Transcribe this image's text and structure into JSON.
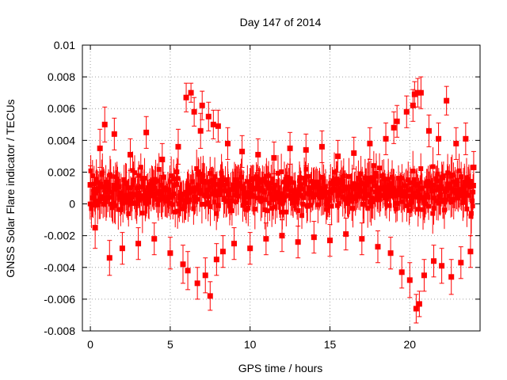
{
  "chart_data": {
    "type": "scatter",
    "title": "Day 147 of 2014",
    "xlabel": "GPS time / hours",
    "ylabel": "GNSS Solar Flare indicator / TECUs",
    "xlim": [
      -0.5,
      24.4
    ],
    "ylim": [
      -0.008,
      0.01
    ],
    "xticks": [
      0,
      5,
      10,
      15,
      20
    ],
    "yticks": [
      -0.008,
      -0.006,
      -0.004,
      -0.002,
      0,
      0.002,
      0.004,
      0.006,
      0.008,
      0.01
    ],
    "xtick_labels": [
      "0",
      "5",
      "10",
      "15",
      "20"
    ],
    "ytick_labels": [
      "-0.008",
      "-0.006",
      "-0.004",
      "-0.002",
      "0",
      "0.002",
      "0.004",
      "0.006",
      "0.008",
      "0.01"
    ],
    "grid": true,
    "marker": "square",
    "error_bars": true,
    "color": "#ff0000",
    "series": [
      {
        "name": "solar flare indicator",
        "x": [
          0.0,
          0.3,
          0.6,
          0.9,
          1.2,
          1.5,
          2.0,
          2.5,
          3.0,
          3.5,
          4.0,
          4.5,
          5.0,
          5.5,
          5.8,
          6.0,
          6.1,
          6.3,
          6.5,
          6.7,
          6.9,
          7.0,
          7.2,
          7.4,
          7.5,
          7.7,
          7.9,
          8.0,
          8.3,
          8.6,
          9.0,
          9.5,
          10.0,
          10.5,
          11.0,
          11.5,
          12.0,
          12.5,
          13.0,
          13.5,
          14.0,
          14.5,
          15.0,
          15.5,
          16.0,
          16.5,
          17.0,
          17.5,
          18.0,
          18.5,
          18.8,
          19.0,
          19.2,
          19.5,
          19.8,
          20.0,
          20.2,
          20.3,
          20.4,
          20.5,
          20.6,
          20.7,
          20.9,
          21.2,
          21.5,
          21.8,
          22.0,
          22.3,
          22.6,
          22.9,
          23.2,
          23.5,
          23.8,
          24.0
        ],
        "y": [
          0.0012,
          -0.0015,
          0.0035,
          0.005,
          -0.0034,
          0.0044,
          -0.0028,
          0.0031,
          -0.0025,
          0.0045,
          -0.0022,
          0.0028,
          -0.0031,
          0.0036,
          -0.0038,
          0.0067,
          -0.0042,
          0.007,
          0.0058,
          -0.005,
          0.0046,
          0.0062,
          -0.0045,
          0.0055,
          -0.0058,
          0.005,
          -0.0035,
          0.0049,
          -0.003,
          0.0038,
          -0.0025,
          0.0033,
          -0.0028,
          0.0031,
          -0.0022,
          0.0029,
          -0.002,
          0.0035,
          -0.0024,
          0.0034,
          -0.0021,
          0.0036,
          -0.0023,
          0.003,
          -0.0019,
          0.0032,
          -0.0022,
          0.0038,
          -0.0027,
          0.0041,
          -0.0031,
          0.0048,
          0.0052,
          -0.0043,
          0.0058,
          -0.0048,
          0.0062,
          0.0069,
          -0.0066,
          0.007,
          -0.0063,
          0.007,
          -0.0045,
          0.0046,
          -0.0036,
          0.0041,
          -0.0039,
          0.0065,
          -0.0046,
          0.0038,
          -0.0037,
          0.0041,
          -0.003,
          0.0023
        ],
        "err": [
          0.0012,
          0.0013,
          0.0012,
          0.0011,
          0.0011,
          0.001,
          0.001,
          0.001,
          0.001,
          0.001,
          0.001,
          0.001,
          0.001,
          0.0011,
          0.0012,
          0.0009,
          0.0012,
          0.0006,
          0.0009,
          0.001,
          0.0011,
          0.0009,
          0.0011,
          0.0009,
          0.0009,
          0.0009,
          0.001,
          0.001,
          0.001,
          0.001,
          0.001,
          0.001,
          0.001,
          0.001,
          0.001,
          0.001,
          0.001,
          0.001,
          0.001,
          0.001,
          0.001,
          0.001,
          0.001,
          0.001,
          0.001,
          0.001,
          0.001,
          0.001,
          0.001,
          0.001,
          0.001,
          0.001,
          0.001,
          0.001,
          0.001,
          0.0011,
          0.001,
          0.0008,
          0.0009,
          0.0009,
          0.0008,
          0.001,
          0.001,
          0.001,
          0.001,
          0.001,
          0.0011,
          0.0009,
          0.0011,
          0.001,
          0.001,
          0.001,
          0.001,
          0.001
        ]
      }
    ],
    "background_band": {
      "x_start": 0.0,
      "x_end": 24.0,
      "center": 0.0008,
      "spread": 0.0018
    }
  }
}
